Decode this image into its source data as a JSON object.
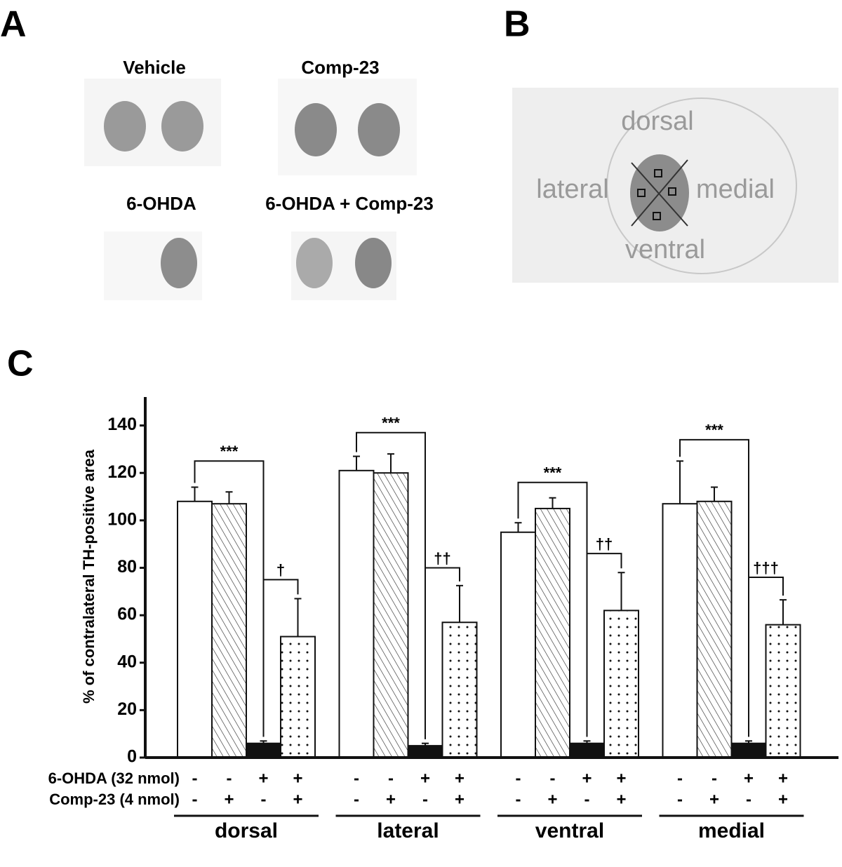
{
  "panels": {
    "a": "A",
    "b": "B",
    "c": "C"
  },
  "panel_a": {
    "labels": [
      "Vehicle",
      "Comp-23",
      "6-OHDA",
      "6-OHDA + Comp-23"
    ]
  },
  "panel_b": {
    "labels": [
      "dorsal",
      "lateral",
      "medial",
      "ventral"
    ]
  },
  "chart_data": {
    "type": "bar",
    "y_label": "% of contralateral TH-positive area",
    "categories": [
      "dorsal",
      "lateral",
      "ventral",
      "medial"
    ],
    "series": [
      {
        "pattern": "plain",
        "color": "#ffffff",
        "values": [
          108,
          121,
          95,
          107
        ],
        "errors": [
          6,
          6,
          4,
          18
        ]
      },
      {
        "pattern": "hatch",
        "color": "#ffffff",
        "values": [
          107,
          120,
          105,
          108
        ],
        "errors": [
          5,
          8,
          4.5,
          6
        ]
      },
      {
        "pattern": "solid",
        "color": "#111111",
        "values": [
          6,
          5,
          6,
          6
        ],
        "errors": [
          1,
          1,
          1,
          1
        ]
      },
      {
        "pattern": "dots",
        "color": "#ffffff",
        "values": [
          51,
          57,
          62,
          56
        ],
        "errors": [
          16,
          15.5,
          16,
          10.5
        ]
      }
    ],
    "ylim": [
      0,
      152
    ],
    "yticks": [
      0,
      20,
      40,
      60,
      80,
      100,
      120,
      140
    ],
    "treatments": [
      {
        "label": "6-OHDA (32 nmol)",
        "signs": [
          "-",
          "-",
          "+",
          "+"
        ]
      },
      {
        "label": "Comp-23 (4 nmol)",
        "signs": [
          "-",
          "+",
          "-",
          "+"
        ]
      }
    ],
    "annotations": [
      {
        "text": "***",
        "category": 0,
        "from": 0,
        "to": 2,
        "y": 125
      },
      {
        "text": "***",
        "category": 1,
        "from": 0,
        "to": 2,
        "y": 137
      },
      {
        "text": "***",
        "category": 2,
        "from": 0,
        "to": 2,
        "y": 116
      },
      {
        "text": "***",
        "category": 3,
        "from": 0,
        "to": 2,
        "y": 134
      },
      {
        "text": "†",
        "category": 0,
        "from": 2,
        "to": 3,
        "y": 75
      },
      {
        "text": "††",
        "category": 1,
        "from": 2,
        "to": 3,
        "y": 80
      },
      {
        "text": "††",
        "category": 2,
        "from": 2,
        "to": 3,
        "y": 86
      },
      {
        "text": "†††",
        "category": 3,
        "from": 2,
        "to": 3,
        "y": 76
      }
    ]
  }
}
